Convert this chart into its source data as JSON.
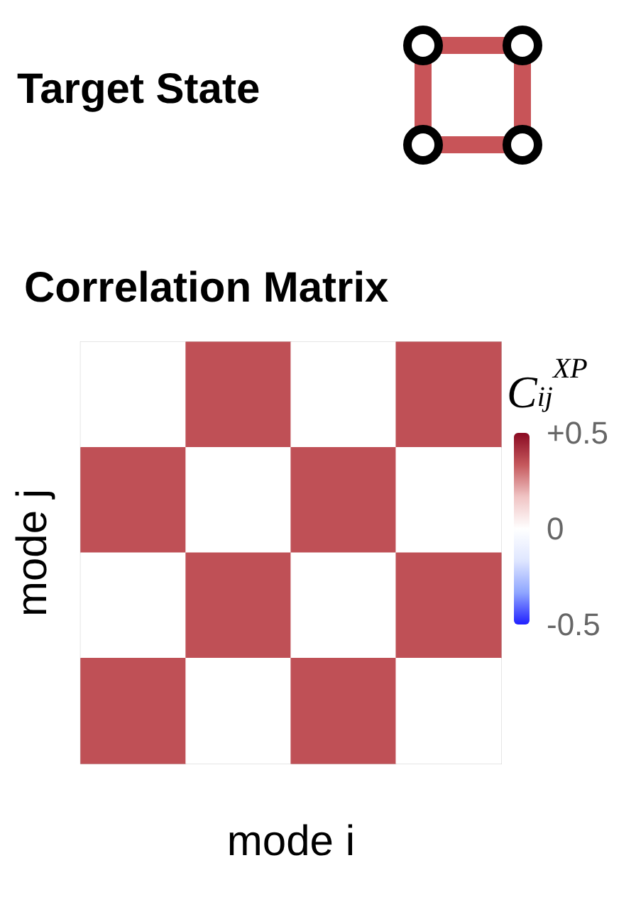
{
  "chart_data": {
    "type": "heatmap",
    "title": "Correlation Matrix",
    "annotations": [
      "Target State"
    ],
    "xlabel": "mode i",
    "ylabel": "mode j",
    "clabel": "C$_{ij}$$^{XP}$",
    "categories": [
      null,
      null,
      null,
      null
    ],
    "y_categories": [
      null,
      null,
      null,
      null
    ],
    "cells": [
      [
        0,
        0.35,
        0,
        0.35
      ],
      [
        0.35,
        0,
        0.35,
        0
      ],
      [
        0,
        0.35,
        0,
        0.35
      ],
      [
        0.35,
        0,
        0.35,
        0
      ]
    ],
    "clim": [
      -0.5,
      0.5
    ],
    "cticks": [
      {
        "value": 0.5,
        "label": "+0.5"
      },
      0,
      -0.5
    ]
  }
}
